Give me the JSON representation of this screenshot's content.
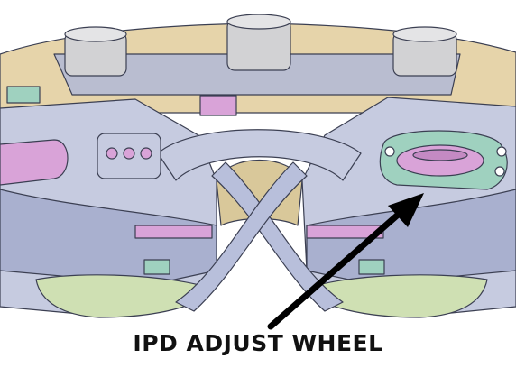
{
  "caption": "IPD ADJUST WHEEL",
  "colors": {
    "shell_tan": "#e6d4aa",
    "body_blue": "#c6cbe0",
    "body_blue_dark": "#a9b0cf",
    "gray_cap": "#d2d2d4",
    "pink": "#d9a3d8",
    "mint": "#9fd1bf",
    "lens_green": "#cfe0b3",
    "outline": "#3b3f52",
    "arrow": "#000000"
  }
}
